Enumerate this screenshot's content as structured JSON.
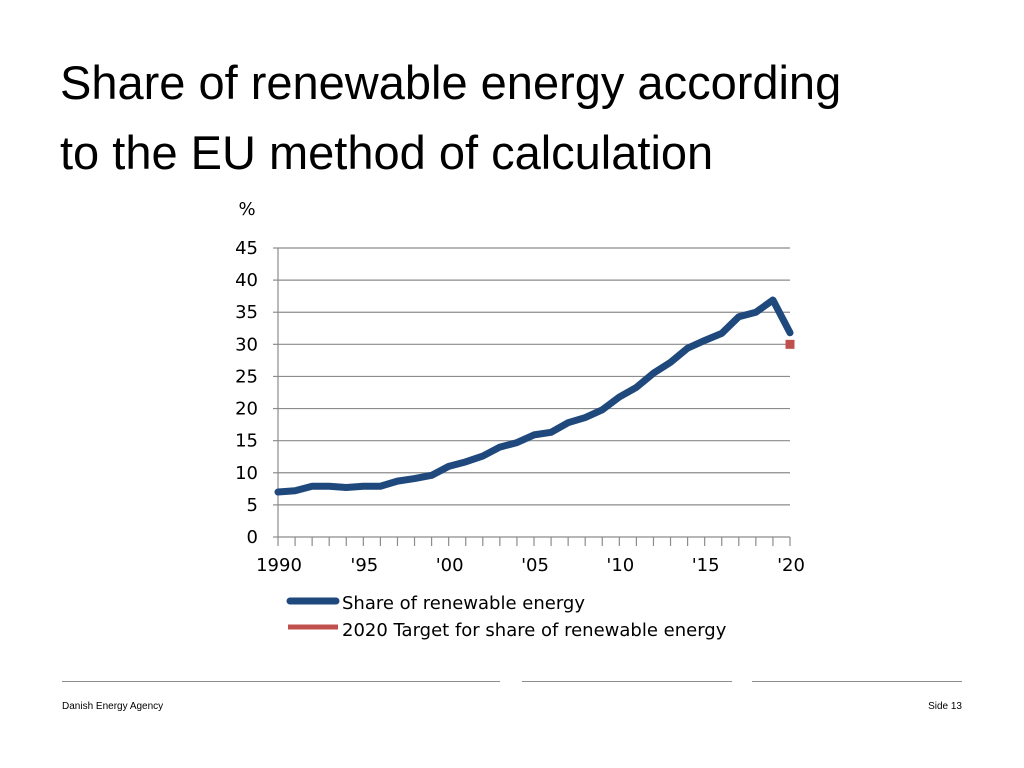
{
  "slide": {
    "title_line1": "Share of renewable energy according",
    "title_line2": "to the EU method of calculation"
  },
  "footer": {
    "organization": "Danish Energy Agency",
    "page": "Side 13"
  },
  "chart_data": {
    "type": "line",
    "title": "",
    "ylabel": "%",
    "xlabel": "",
    "ylim": [
      0,
      45
    ],
    "ytick_labels": [
      "0",
      "5",
      "10",
      "15",
      "20",
      "25",
      "30",
      "35",
      "40",
      "45"
    ],
    "xlim": [
      1990,
      2020
    ],
    "xtick_labels": [
      {
        "year": 1990,
        "label": "1990"
      },
      {
        "year": 1995,
        "label": "'95"
      },
      {
        "year": 2000,
        "label": "'00"
      },
      {
        "year": 2005,
        "label": "'05"
      },
      {
        "year": 2010,
        "label": "'10"
      },
      {
        "year": 2015,
        "label": "'15"
      },
      {
        "year": 2020,
        "label": "'20"
      }
    ],
    "grid": true,
    "legend_position": "bottom",
    "series": [
      {
        "name": "Share of renewable energy",
        "color": "#1f497d",
        "marker": "line",
        "x": [
          1990,
          1991,
          1992,
          1993,
          1994,
          1995,
          1996,
          1997,
          1998,
          1999,
          2000,
          2001,
          2002,
          2003,
          2004,
          2005,
          2006,
          2007,
          2008,
          2009,
          2010,
          2011,
          2012,
          2013,
          2014,
          2015,
          2016,
          2017,
          2018,
          2019,
          2020
        ],
        "y": [
          7.0,
          7.2,
          7.9,
          7.9,
          7.7,
          7.9,
          7.9,
          8.7,
          9.1,
          9.6,
          11.0,
          11.7,
          12.6,
          14.0,
          14.7,
          15.9,
          16.3,
          17.8,
          18.6,
          19.8,
          21.8,
          23.3,
          25.5,
          27.2,
          29.4,
          30.6,
          31.7,
          34.3,
          35.0,
          36.9,
          31.8
        ]
      },
      {
        "name": "2020 Target for share of renewable energy",
        "color": "#c0504d",
        "marker": "square",
        "x": [
          2020
        ],
        "y": [
          30
        ]
      }
    ]
  }
}
